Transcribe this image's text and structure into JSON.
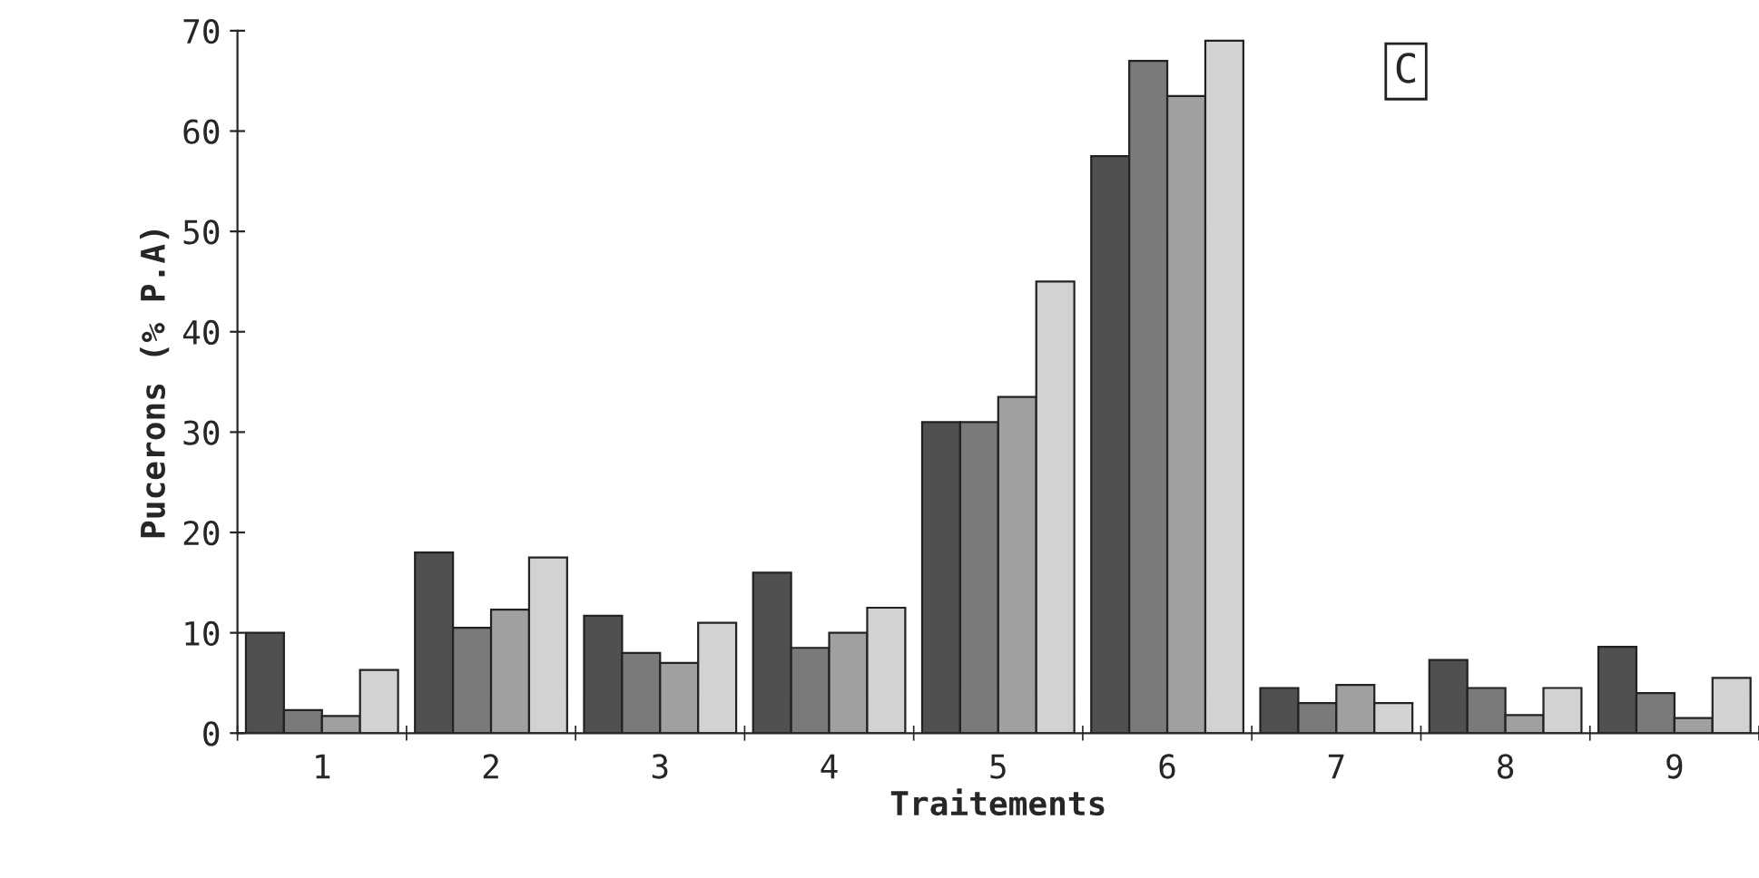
{
  "chart_data": {
    "type": "bar",
    "xlabel": "Traitements",
    "ylabel": "Pucerons (% P.A)",
    "categories": [
      "1",
      "2",
      "3",
      "4",
      "5",
      "6",
      "7",
      "8",
      "9"
    ],
    "series": [
      {
        "color": "#505050",
        "values": [
          10,
          18,
          11.7,
          16,
          31,
          57.5,
          4.5,
          7.3,
          8.6
        ]
      },
      {
        "color": "#7a7a7a",
        "values": [
          2.3,
          10.5,
          8,
          8.5,
          31,
          67,
          3,
          4.5,
          4
        ]
      },
      {
        "color": "#a0a0a0",
        "values": [
          1.7,
          12.3,
          7,
          10,
          33.5,
          63.5,
          4.8,
          1.8,
          1.5
        ]
      },
      {
        "color": "#d2d2d2",
        "values": [
          6.3,
          17.5,
          11,
          12.5,
          45,
          69,
          3,
          4.5,
          5.5
        ]
      }
    ],
    "ylim": [
      0,
      70
    ],
    "yticks": [
      0,
      10,
      20,
      30,
      40,
      50,
      60,
      70
    ],
    "annotations": [
      "C"
    ],
    "grid": false,
    "legend": false
  }
}
